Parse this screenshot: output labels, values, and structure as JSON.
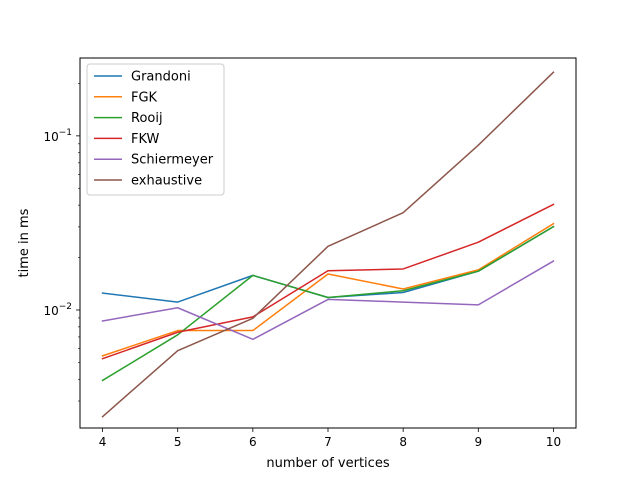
{
  "chart_data": {
    "type": "line",
    "title": "",
    "xlabel": "number of vertices",
    "ylabel": "time in ms",
    "yscale": "log",
    "xlim": [
      3.7,
      10.3
    ],
    "ylim": [
      0.0021,
      0.28
    ],
    "x": [
      4,
      5,
      6,
      7,
      8,
      9,
      10
    ],
    "x_ticks": [
      "4",
      "5",
      "6",
      "7",
      "8",
      "9",
      "10"
    ],
    "y_ticks": [
      {
        "value": 0.01,
        "base": "10",
        "exp": "−2"
      },
      {
        "value": 0.1,
        "base": "10",
        "exp": "−1"
      }
    ],
    "grid": false,
    "legend_position": "top-left",
    "series": [
      {
        "name": "Grandoni",
        "color": "#1f77b4",
        "values": [
          0.0125,
          0.0111,
          0.0158,
          0.0118,
          0.0126,
          0.0167,
          0.0301
        ]
      },
      {
        "name": "FGK",
        "color": "#ff7f0e",
        "values": [
          0.00545,
          0.00762,
          0.00762,
          0.0161,
          0.0132,
          0.017,
          0.0313
        ]
      },
      {
        "name": "Rooij",
        "color": "#2ca02c",
        "values": [
          0.00394,
          0.0072,
          0.0158,
          0.0118,
          0.0129,
          0.0167,
          0.0301
        ]
      },
      {
        "name": "FKW",
        "color": "#d62728",
        "values": [
          0.00525,
          0.00745,
          0.00913,
          0.0168,
          0.0172,
          0.0245,
          0.0404
        ]
      },
      {
        "name": "Schiermeyer",
        "color": "#9467bd",
        "values": [
          0.00865,
          0.0103,
          0.00678,
          0.0115,
          0.0111,
          0.0107,
          0.0191
        ]
      },
      {
        "name": "exhaustive",
        "color": "#8c564b",
        "values": [
          0.00244,
          0.00584,
          0.00896,
          0.0232,
          0.0362,
          0.0884,
          0.232
        ]
      }
    ]
  }
}
